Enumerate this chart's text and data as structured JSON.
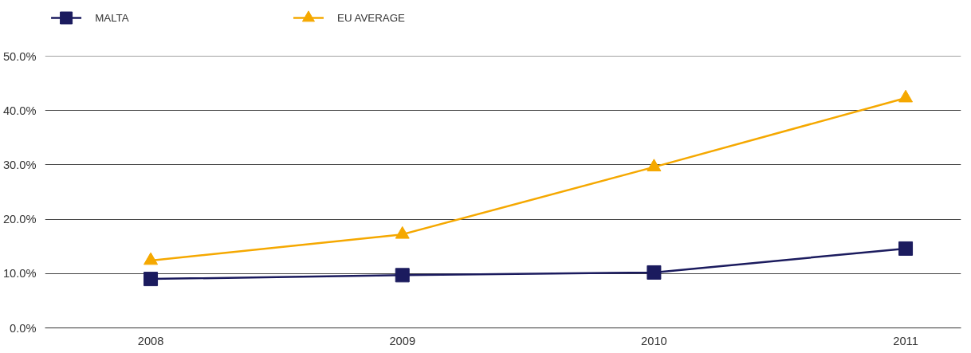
{
  "chart_data": {
    "type": "line",
    "categories": [
      "2008",
      "2009",
      "2010",
      "2011"
    ],
    "series": [
      {
        "name": "MALTA",
        "color": "#1b1b5e",
        "marker": "square",
        "values": [
          9.0,
          9.7,
          10.2,
          14.6
        ]
      },
      {
        "name": "EU AVERAGE",
        "color": "#f5a800",
        "marker": "triangle",
        "values": [
          12.4,
          17.2,
          29.6,
          42.3
        ]
      }
    ],
    "ylim": [
      0,
      50
    ],
    "yticks": [
      {
        "value": 0,
        "label": "0.0%"
      },
      {
        "value": 10,
        "label": "10.0%"
      },
      {
        "value": 20,
        "label": "20.0%"
      },
      {
        "value": 30,
        "label": "30.0%"
      },
      {
        "value": 40,
        "label": "40.0%"
      },
      {
        "value": 50,
        "label": "50.0%"
      }
    ],
    "grid": "y",
    "legend": "top left",
    "line_style": "solid"
  }
}
